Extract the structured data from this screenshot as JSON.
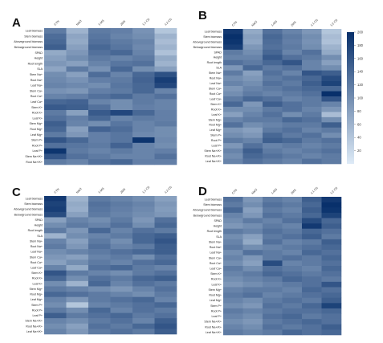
{
  "chart_data": [
    {
      "type": "heatmap",
      "panel": "A",
      "columns": [
        "CTN",
        "NaCl",
        "1-MS",
        "2MS",
        "1:1 CS",
        "1:2 CS"
      ],
      "rows": [
        "Leaf biomass",
        "Stem biomass",
        "Aboveground biomass",
        "Belowground biomass",
        "SPAD",
        "Height",
        "Root length",
        "SLA",
        "Stem Na+",
        "Root Na+",
        "Leaf Na+",
        "Stem Ca+",
        "Root Ca+",
        "Leaf Ca+",
        "Stem K+",
        "Root K+",
        "Leaf K+",
        "Stem Mg+",
        "Root Mg+",
        "Leaf Mg+",
        "Stem P+",
        "Root P+",
        "Leaf P+",
        "Stem Na+/K+",
        "Root Na+/K+"
      ],
      "values": [
        [
          120,
          60,
          120,
          115,
          95,
          40
        ],
        [
          135,
          75,
          125,
          110,
          100,
          60
        ],
        [
          140,
          70,
          130,
          120,
          110,
          50
        ],
        [
          150,
          80,
          140,
          125,
          105,
          60
        ],
        [
          70,
          90,
          130,
          140,
          110,
          45
        ],
        [
          80,
          100,
          120,
          110,
          120,
          70
        ],
        [
          90,
          80,
          110,
          125,
          130,
          60
        ],
        [
          75,
          120,
          95,
          140,
          100,
          80
        ],
        [
          100,
          80,
          135,
          110,
          140,
          165
        ],
        [
          105,
          95,
          115,
          120,
          145,
          185
        ],
        [
          110,
          105,
          100,
          125,
          140,
          175
        ],
        [
          95,
          90,
          115,
          120,
          140,
          110
        ],
        [
          110,
          115,
          130,
          140,
          120,
          130
        ],
        [
          140,
          145,
          110,
          100,
          120,
          110
        ],
        [
          155,
          150,
          130,
          100,
          115,
          110
        ],
        [
          120,
          80,
          155,
          175,
          140,
          115
        ],
        [
          130,
          115,
          140,
          110,
          120,
          115
        ],
        [
          150,
          110,
          100,
          125,
          110,
          120
        ],
        [
          140,
          80,
          145,
          135,
          110,
          100
        ],
        [
          120,
          90,
          115,
          125,
          105,
          100
        ],
        [
          160,
          140,
          115,
          125,
          195,
          105
        ],
        [
          130,
          125,
          120,
          145,
          110,
          100
        ],
        [
          195,
          120,
          110,
          120,
          110,
          115
        ],
        [
          160,
          130,
          120,
          110,
          110,
          130
        ],
        [
          120,
          110,
          130,
          140,
          115,
          115
        ]
      ]
    },
    {
      "type": "heatmap",
      "panel": "B",
      "columns": [
        "CTN",
        "NaCl",
        "1-MS",
        "2MS",
        "1:1 CS",
        "1:2 CS"
      ],
      "rows": [
        "Leaf biomass",
        "Stem biomass",
        "Aboveground biomass",
        "Belowground biomass",
        "SPAD",
        "Height",
        "Root length",
        "SLA",
        "Stem Na+",
        "Root Na+",
        "Leaf Na+",
        "Stem Ca+",
        "Root Ca+",
        "Leaf Ca+",
        "Stem K+",
        "Root K+",
        "Leaf K+",
        "Stem Mg+",
        "Root Mg+",
        "Leaf Mg+",
        "Stem P+",
        "Root P+",
        "Leaf P+",
        "Stem Na+/K+",
        "Root Na+/K+",
        "Leaf Na+/K+"
      ],
      "values": [
        [
          190,
          70,
          130,
          110,
          90,
          40
        ],
        [
          200,
          80,
          140,
          120,
          100,
          50
        ],
        [
          195,
          75,
          135,
          115,
          95,
          45
        ],
        [
          185,
          90,
          130,
          120,
          100,
          60
        ],
        [
          120,
          100,
          140,
          110,
          130,
          70
        ],
        [
          110,
          110,
          155,
          130,
          120,
          100
        ],
        [
          130,
          120,
          140,
          160,
          110,
          80
        ],
        [
          90,
          140,
          120,
          130,
          110,
          100
        ],
        [
          120,
          80,
          130,
          110,
          160,
          150
        ],
        [
          100,
          90,
          120,
          130,
          140,
          170
        ],
        [
          110,
          100,
          130,
          120,
          150,
          180
        ],
        [
          90,
          110,
          120,
          130,
          140,
          140
        ],
        [
          100,
          120,
          110,
          120,
          130,
          200
        ],
        [
          120,
          140,
          130,
          110,
          120,
          160
        ],
        [
          140,
          90,
          150,
          130,
          120,
          110
        ],
        [
          100,
          100,
          120,
          130,
          110,
          90
        ],
        [
          80,
          110,
          130,
          100,
          120,
          50
        ],
        [
          110,
          120,
          120,
          140,
          130,
          100
        ],
        [
          130,
          100,
          110,
          120,
          120,
          150
        ],
        [
          90,
          80,
          120,
          130,
          110,
          120
        ],
        [
          100,
          90,
          140,
          120,
          130,
          100
        ],
        [
          120,
          110,
          150,
          140,
          120,
          130
        ],
        [
          90,
          130,
          110,
          120,
          110,
          120
        ],
        [
          110,
          150,
          120,
          110,
          120,
          130
        ],
        [
          100,
          140,
          130,
          120,
          110,
          120
        ],
        [
          110,
          130,
          120,
          110,
          130,
          120
        ]
      ]
    },
    {
      "type": "heatmap",
      "panel": "C",
      "columns": [
        "CTN",
        "NaCl",
        "1-MS",
        "2MS",
        "1:1 CS",
        "1:2 CS"
      ],
      "rows": [
        "Leaf biomass",
        "Stem biomass",
        "Aboveground biomass",
        "Belowground biomass",
        "SPAD",
        "Height",
        "Root length",
        "SLA",
        "Stem Na+",
        "Root Na+",
        "Leaf Na+",
        "Stem Ca+",
        "Root Ca+",
        "Leaf Ca+",
        "Stem K+",
        "Root K+",
        "Leaf K+",
        "Stem Mg+",
        "Root Mg+",
        "Leaf Mg+",
        "Stem P+",
        "Root P+",
        "Leaf P+",
        "Stem Na+/K+",
        "Root Na+/K+",
        "Leaf Na+/K+"
      ],
      "values": [
        [
          190,
          60,
          120,
          110,
          100,
          80
        ],
        [
          180,
          70,
          130,
          120,
          110,
          90
        ],
        [
          185,
          65,
          125,
          115,
          105,
          85
        ],
        [
          170,
          80,
          120,
          110,
          100,
          90
        ],
        [
          80,
          110,
          100,
          120,
          90,
          130
        ],
        [
          100,
          120,
          110,
          130,
          100,
          140
        ],
        [
          120,
          90,
          140,
          110,
          130,
          120
        ],
        [
          60,
          100,
          110,
          120,
          140,
          150
        ],
        [
          110,
          80,
          120,
          100,
          140,
          160
        ],
        [
          120,
          90,
          130,
          110,
          120,
          150
        ],
        [
          100,
          110,
          120,
          130,
          140,
          150
        ],
        [
          90,
          80,
          110,
          120,
          100,
          130
        ],
        [
          80,
          100,
          120,
          110,
          130,
          140
        ],
        [
          110,
          70,
          130,
          140,
          120,
          110
        ],
        [
          160,
          120,
          110,
          100,
          120,
          130
        ],
        [
          140,
          100,
          130,
          120,
          140,
          150
        ],
        [
          100,
          60,
          140,
          110,
          130,
          120
        ],
        [
          120,
          110,
          100,
          90,
          110,
          130
        ],
        [
          140,
          130,
          120,
          110,
          100,
          120
        ],
        [
          110,
          90,
          120,
          130,
          140,
          110
        ],
        [
          100,
          40,
          110,
          120,
          130,
          140
        ],
        [
          120,
          100,
          140,
          110,
          130,
          120
        ],
        [
          150,
          120,
          130,
          140,
          120,
          130
        ],
        [
          110,
          100,
          120,
          130,
          110,
          150
        ],
        [
          100,
          80,
          130,
          120,
          140,
          160
        ],
        [
          110,
          90,
          120,
          130,
          120,
          150
        ]
      ]
    },
    {
      "type": "heatmap",
      "panel": "D",
      "columns": [
        "CTN",
        "NaCl",
        "1-MS",
        "2MS",
        "1:1 CS",
        "1:2 CS"
      ],
      "rows": [
        "Leaf biomass",
        "Stem biomass",
        "Aboveground biomass",
        "Belowground biomass",
        "SPAD",
        "Height",
        "Root length",
        "SLA",
        "Stem Na+",
        "Root Na+",
        "Leaf Na+",
        "Stem Ca+",
        "Root Ca+",
        "Leaf Ca+",
        "Stem K+",
        "Root K+",
        "Leaf K+",
        "Stem Mg+",
        "Root Mg+",
        "Leaf Mg+",
        "Stem P+",
        "Root P+",
        "Leaf P+",
        "Stem Na+/K+",
        "Root Na+/K+",
        "Leaf Na+/K+"
      ],
      "values": [
        [
          130,
          90,
          120,
          110,
          150,
          190
        ],
        [
          120,
          100,
          130,
          120,
          140,
          200
        ],
        [
          140,
          80,
          120,
          110,
          150,
          195
        ],
        [
          110,
          90,
          130,
          120,
          140,
          180
        ],
        [
          100,
          120,
          110,
          130,
          170,
          140
        ],
        [
          90,
          100,
          120,
          110,
          190,
          150
        ],
        [
          120,
          110,
          130,
          120,
          140,
          130
        ],
        [
          100,
          80,
          120,
          130,
          150,
          120
        ],
        [
          110,
          70,
          130,
          110,
          120,
          150
        ],
        [
          120,
          100,
          110,
          120,
          130,
          140
        ],
        [
          100,
          130,
          120,
          110,
          140,
          130
        ],
        [
          110,
          90,
          120,
          130,
          120,
          140
        ],
        [
          100,
          80,
          170,
          110,
          120,
          130
        ],
        [
          120,
          100,
          130,
          120,
          110,
          140
        ],
        [
          110,
          120,
          140,
          130,
          120,
          130
        ],
        [
          100,
          110,
          120,
          140,
          130,
          120
        ],
        [
          90,
          100,
          110,
          120,
          130,
          160
        ],
        [
          110,
          120,
          120,
          110,
          140,
          130
        ],
        [
          120,
          130,
          110,
          120,
          130,
          140
        ],
        [
          110,
          100,
          120,
          130,
          120,
          150
        ],
        [
          100,
          90,
          130,
          120,
          140,
          180
        ],
        [
          120,
          110,
          120,
          130,
          130,
          140
        ],
        [
          110,
          100,
          130,
          140,
          120,
          130
        ],
        [
          100,
          90,
          120,
          130,
          140,
          130
        ],
        [
          110,
          100,
          130,
          120,
          130,
          150
        ],
        [
          120,
          110,
          120,
          140,
          130,
          140
        ]
      ]
    }
  ],
  "colorbar": {
    "min": 0,
    "max": 200,
    "ticks": [
      "200",
      "180",
      "160",
      "140",
      "120",
      "100",
      "80",
      "60",
      "40",
      "20"
    ],
    "colors": [
      "#deebf7",
      "#08306b"
    ]
  }
}
